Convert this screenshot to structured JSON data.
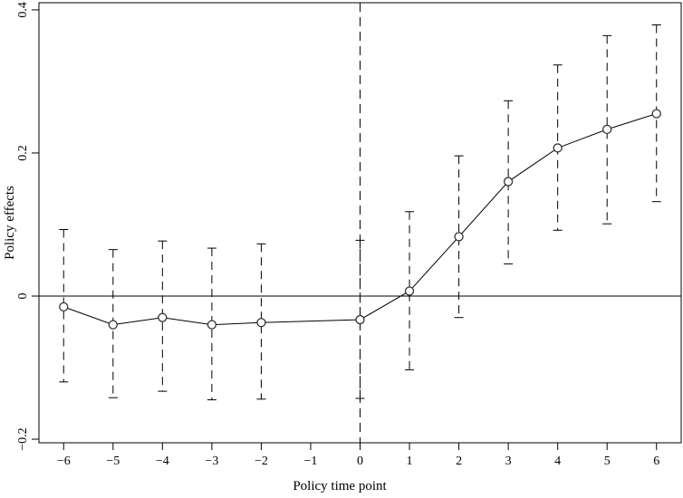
{
  "chart_data": {
    "type": "line",
    "title": "",
    "xlabel": "Policy time point",
    "ylabel": "Policy effects",
    "x": [
      -6,
      -5,
      -4,
      -3,
      -2,
      0,
      1,
      2,
      3,
      4,
      5,
      6
    ],
    "series": [
      {
        "values": [
          -0.015,
          -0.04,
          -0.03,
          -0.04,
          -0.037,
          -0.033,
          0.007,
          0.083,
          0.16,
          0.207,
          0.233,
          0.255
        ],
        "lower": [
          -0.12,
          -0.142,
          -0.133,
          -0.145,
          -0.144,
          -0.143,
          -0.103,
          -0.03,
          0.045,
          0.092,
          0.101,
          0.132
        ],
        "upper": [
          0.093,
          0.065,
          0.077,
          0.067,
          0.073,
          0.078,
          0.118,
          0.196,
          0.273,
          0.323,
          0.364,
          0.379
        ]
      }
    ],
    "xlim": [
      -6.5,
      6.5
    ],
    "ylim": [
      -0.205,
      0.41
    ],
    "xticks": [
      -6,
      -5,
      -4,
      -3,
      -2,
      -1,
      0,
      1,
      2,
      3,
      4,
      5,
      6
    ],
    "xtick_labels": [
      "−6",
      "−5",
      "−4",
      "−3",
      "−2",
      "−1",
      "0",
      "1",
      "2",
      "3",
      "4",
      "5",
      "6"
    ],
    "yticks": [
      -0.2,
      0,
      0.2,
      0.4
    ],
    "ytick_labels": [
      "−0.2",
      "0",
      "0.2",
      "0.4"
    ],
    "reference_lines": {
      "horizontal_y": 0,
      "vertical_x": 0
    },
    "grid": false,
    "colors": {
      "line": "#000000",
      "marker_edge": "#333333",
      "marker_fill": "#ffffff"
    }
  }
}
